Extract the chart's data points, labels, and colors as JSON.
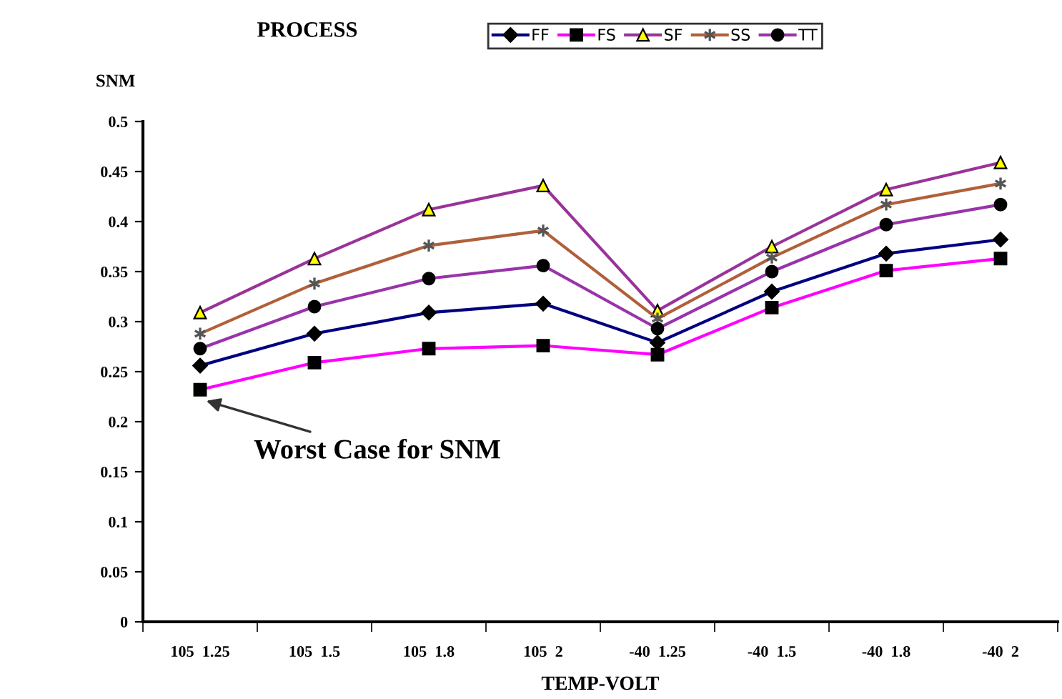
{
  "chart_data": {
    "type": "line",
    "xlabel": "TEMP-VOLT",
    "ylabel": "SNM",
    "legend_title": "PROCESS",
    "categories": [
      "105  1.25",
      "105  1.5",
      "105  1.8",
      "105  2",
      "-40  1.25",
      "-40  1.5",
      "-40  1.8",
      "-40  2"
    ],
    "series": [
      {
        "name": "FF",
        "color": "#000080",
        "marker": "diamond",
        "values": [
          0.256,
          0.288,
          0.309,
          0.318,
          0.279,
          0.33,
          0.368,
          0.382
        ]
      },
      {
        "name": "FS",
        "color": "#ff00ff",
        "marker": "square",
        "values": [
          0.232,
          0.259,
          0.273,
          0.276,
          0.267,
          0.314,
          0.351,
          0.363
        ]
      },
      {
        "name": "SF",
        "color": "#993399",
        "marker": "triangle",
        "values": [
          0.309,
          0.363,
          0.412,
          0.436,
          0.311,
          0.375,
          0.432,
          0.459
        ]
      },
      {
        "name": "SS",
        "color": "#b0603a",
        "marker": "cross",
        "values": [
          0.288,
          0.338,
          0.376,
          0.391,
          0.303,
          0.364,
          0.417,
          0.438
        ]
      },
      {
        "name": "TT",
        "color": "#9933aa",
        "marker": "circle",
        "values": [
          0.273,
          0.315,
          0.343,
          0.356,
          0.293,
          0.35,
          0.397,
          0.417
        ]
      }
    ],
    "ylim": [
      0,
      0.5
    ],
    "yticks": [
      0,
      0.05,
      0.1,
      0.15,
      0.2,
      0.25,
      0.3,
      0.35,
      0.4,
      0.45,
      0.5
    ],
    "grid": false,
    "legend": "top",
    "line_style": "solid",
    "annotations": [
      {
        "text": "Worst Case for SNM",
        "x": "105  1.25",
        "y": 0.232
      }
    ]
  }
}
